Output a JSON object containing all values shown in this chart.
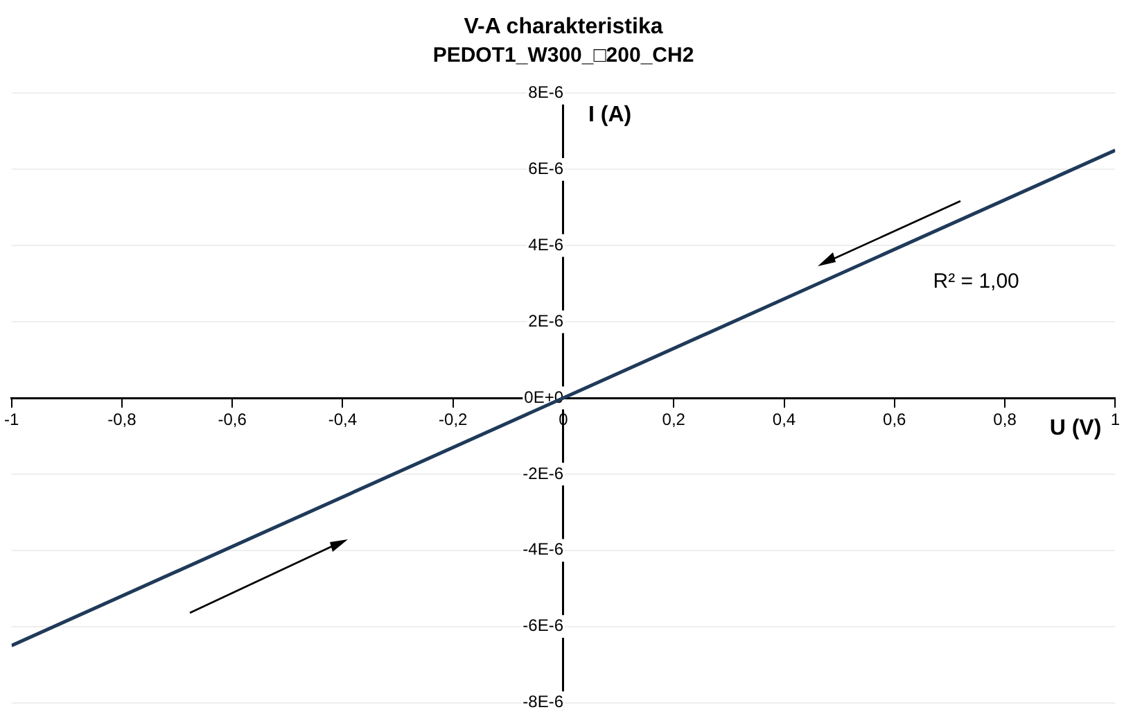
{
  "chart_data": {
    "type": "line",
    "title": "V-A charakteristika",
    "subtitle": "PEDOT1_W300_□200_CH2",
    "xlabel": "U (V)",
    "ylabel": "I (A)",
    "x": [
      -1,
      0,
      1
    ],
    "series": [
      {
        "color": "#1f3a5a",
        "values": [
          -6.5e-06,
          0,
          6.5e-06
        ]
      }
    ],
    "xlim": [
      -1,
      1
    ],
    "ylim": [
      -8e-06,
      8e-06
    ],
    "xticks": [
      -1,
      {
        "value": -0.8,
        "label": "-0,8"
      },
      {
        "value": -0.6,
        "label": "-0,6"
      },
      {
        "value": -0.4,
        "label": "-0,4"
      },
      {
        "value": -0.2,
        "label": "-0,2"
      },
      0,
      {
        "value": 0.2,
        "label": "0,2"
      },
      {
        "value": 0.4,
        "label": "0,4"
      },
      {
        "value": 0.6,
        "label": "0,6"
      },
      {
        "value": 0.8,
        "label": "0,8"
      },
      1
    ],
    "yticks": [
      {
        "value": -8e-06,
        "label": "-8E-6"
      },
      {
        "value": -6e-06,
        "label": "-6E-6"
      },
      {
        "value": -4e-06,
        "label": "-4E-6"
      },
      {
        "value": -2e-06,
        "label": "-2E-6"
      },
      {
        "value": 0,
        "label": "0E+0"
      },
      {
        "value": 2e-06,
        "label": "2E-6"
      },
      {
        "value": 4e-06,
        "label": "4E-6"
      },
      {
        "value": 6e-06,
        "label": "6E-6"
      },
      {
        "value": 8e-06,
        "label": "8E-6"
      }
    ],
    "grid": "y",
    "marker": "none",
    "line_style": "solid",
    "annotations": [
      "R² = 1,00"
    ]
  }
}
